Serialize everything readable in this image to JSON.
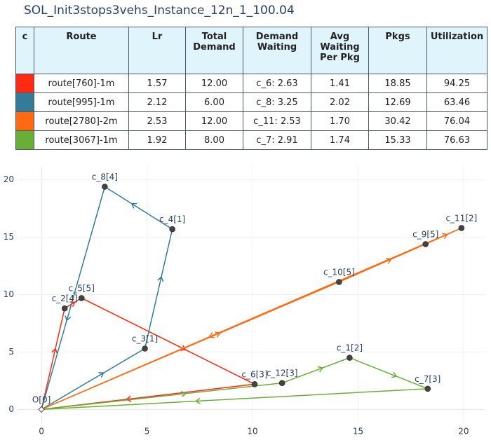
{
  "title": "SOL_Init3stops3vehs_Instance_12n_1_100.04",
  "table": {
    "headers": [
      "c",
      "Route",
      "Lr",
      "Total Demand",
      "Demand Waiting",
      "Avg Waiting Per Pkg",
      "Pkgs",
      "Utilization"
    ],
    "colors": [
      "#ff2a12",
      "#347b98",
      "#ff6a10",
      "#6aaf35"
    ],
    "rows": [
      [
        "route[760]-1m",
        "1.57",
        "12.00",
        "c_6: 2.63",
        "1.41",
        "18.85",
        "94.25"
      ],
      [
        "route[995]-1m",
        "2.12",
        "6.00",
        "c_8: 3.25",
        "2.02",
        "12.69",
        "63.46"
      ],
      [
        "route[2780]-2m",
        "2.53",
        "12.00",
        "c_11: 2.53",
        "1.70",
        "30.42",
        "76.04"
      ],
      [
        "route[3067]-1m",
        "1.92",
        "8.00",
        "c_7: 2.91",
        "1.74",
        "15.33",
        "76.63"
      ]
    ]
  },
  "plot": {
    "xlim": [
      -1.1,
      21
    ],
    "ylim": [
      -1.2,
      21.2
    ],
    "xticks": [
      0,
      5,
      10,
      15,
      20
    ],
    "yticks": [
      0,
      5,
      10,
      15,
      20
    ],
    "routes": [
      {
        "color": "#ff2a12",
        "x": [
          0,
          1.1,
          1.9,
          10.1,
          0
        ],
        "y": [
          0,
          8.8,
          9.7,
          2.2,
          0
        ]
      },
      {
        "color": "#347b98",
        "x": [
          0,
          4.9,
          6.2,
          3.0,
          0
        ],
        "y": [
          0,
          5.3,
          15.7,
          19.4,
          0
        ]
      },
      {
        "color": "#ff6a10",
        "x": [
          0,
          14.1,
          18.2,
          19.9,
          0
        ],
        "y": [
          0,
          11.1,
          14.4,
          15.8,
          0
        ]
      },
      {
        "color": "#6aaf35",
        "x": [
          0,
          11.4,
          14.6,
          18.3,
          0
        ],
        "y": [
          0,
          2.3,
          4.5,
          1.8,
          0
        ]
      }
    ],
    "nodes": [
      {
        "label": "O[0]",
        "x": 0,
        "y": 0
      },
      {
        "label": "c_1[2]",
        "x": 14.6,
        "y": 4.5
      },
      {
        "label": "c_2[4]",
        "x": 1.1,
        "y": 8.8
      },
      {
        "label": "c_3[1]",
        "x": 4.9,
        "y": 5.3
      },
      {
        "label": "c_4[1]",
        "x": 6.2,
        "y": 15.7
      },
      {
        "label": "c_5[5]",
        "x": 1.9,
        "y": 9.7
      },
      {
        "label": "c_6[3]",
        "x": 10.1,
        "y": 2.2
      },
      {
        "label": "c_7[3]",
        "x": 18.3,
        "y": 1.8
      },
      {
        "label": "c_8[4]",
        "x": 3.0,
        "y": 19.4
      },
      {
        "label": "c_9[5]",
        "x": 18.2,
        "y": 14.4
      },
      {
        "label": "c_10[5]",
        "x": 14.1,
        "y": 11.1
      },
      {
        "label": "c_11[2]",
        "x": 19.9,
        "y": 15.8
      },
      {
        "label": "c_12[3]",
        "x": 11.4,
        "y": 2.3
      }
    ]
  }
}
